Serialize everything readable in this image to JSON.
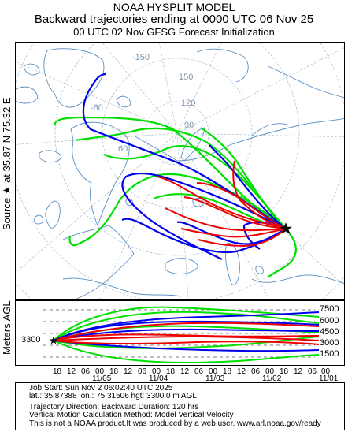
{
  "title": {
    "line1": "NOAA HYSPLIT MODEL",
    "line2": "Backward trajectories ending at 0000 UTC 06 Nov 25",
    "line3": "00 UTC 02 Nov     GFSG  Forecast Initialization"
  },
  "side_labels": {
    "source": "Source ★ at  35.87 N  75.32 E",
    "meters": "Meters AGL"
  },
  "map": {
    "graticule_labels": [
      "-150",
      "150",
      "120",
      "90",
      "60",
      "-60"
    ],
    "source_marker": "star",
    "colors": {
      "land": "#ffffff",
      "water": "#ffffff",
      "coast": "#5a8fc4",
      "graticule": "#9fb3c6"
    },
    "trajectory_colors": {
      "red": "#ff0000",
      "blue": "#0000ff",
      "green": "#00ff00"
    }
  },
  "vertical": {
    "start_level": "3300",
    "levels": [
      "7500",
      "6000",
      "4500",
      "3000",
      "1500"
    ],
    "hour_ticks": [
      "18",
      "12",
      "06",
      "00",
      "18",
      "12",
      "06",
      "00",
      "18",
      "12",
      "06",
      "00",
      "18",
      "12",
      "06",
      "00",
      "18",
      "12",
      "06",
      "00"
    ],
    "date_ticks": [
      "11/05",
      "11/04",
      "11/03",
      "11/02",
      "11/01"
    ]
  },
  "footer": {
    "line1": "Job Start: Sun Nov  2 06:02:40 UTC 2025",
    "line2": "lat.: 35.87388   lon.: 75.31506   hgt: 3300.0 m AGL",
    "line3": "Trajectory Direction: Backward       Duration: 120 hrs",
    "line4": "Vertical Motion Calculation Method: Model Vertical Velocity",
    "line5": "This is not a NOAA product.It was produced by a web user. www.arl.noaa.gov/ready"
  }
}
